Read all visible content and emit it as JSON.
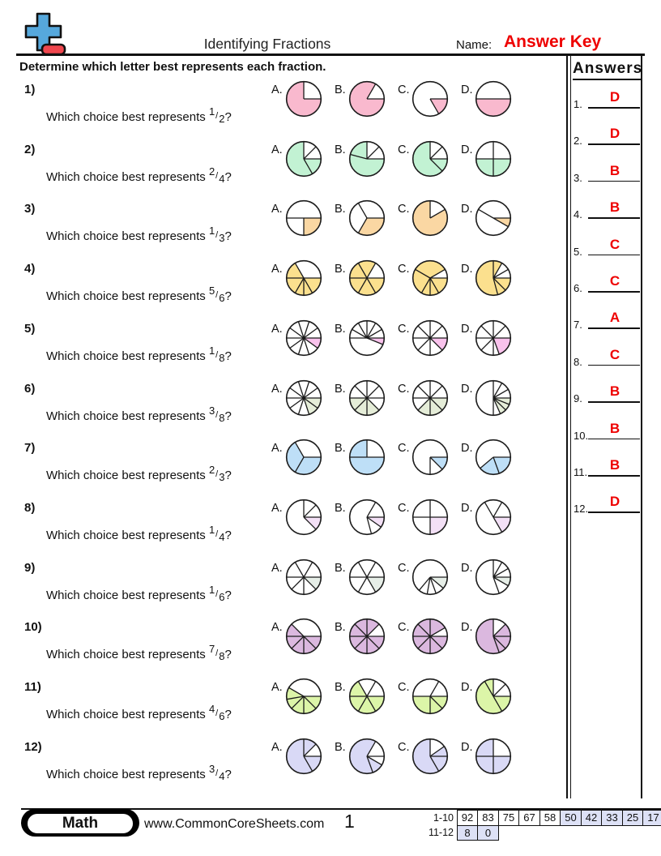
{
  "header": {
    "title": "Identifying Fractions",
    "name_label": "Name:",
    "name_value": "Answer Key"
  },
  "instruction": "Determine which letter best represents each fraction.",
  "answers_panel": {
    "title": "Answers",
    "items": [
      {
        "num": "1.",
        "letter": "D"
      },
      {
        "num": "2.",
        "letter": "D"
      },
      {
        "num": "3.",
        "letter": "B"
      },
      {
        "num": "4.",
        "letter": "B"
      },
      {
        "num": "5.",
        "letter": "C"
      },
      {
        "num": "6.",
        "letter": "C"
      },
      {
        "num": "7.",
        "letter": "A"
      },
      {
        "num": "8.",
        "letter": "C"
      },
      {
        "num": "9.",
        "letter": "B"
      },
      {
        "num": "10.",
        "letter": "B"
      },
      {
        "num": "11.",
        "letter": "B"
      },
      {
        "num": "12.",
        "letter": "D"
      }
    ]
  },
  "questions": [
    {
      "num": "1)",
      "prompt": "Which choice best represents",
      "fraction": {
        "numerator": "1",
        "denominator": "2"
      },
      "suffix": "?",
      "fill_color": "#F9B9CE",
      "choices": [
        {
          "label": "A.",
          "boundaries": [
            0,
            90
          ],
          "filled": [
            [
              90,
              360
            ]
          ]
        },
        {
          "label": "B.",
          "boundaries": [
            30,
            90
          ],
          "filled": [
            [
              90,
              390
            ]
          ]
        },
        {
          "label": "C.",
          "boundaries": [
            90,
            150
          ],
          "filled": [
            [
              90,
              150
            ]
          ]
        },
        {
          "label": "D.",
          "boundaries": [
            90,
            270
          ],
          "filled": [
            [
              90,
              270
            ]
          ]
        }
      ]
    },
    {
      "num": "2)",
      "prompt": "Which choice best represents",
      "fraction": {
        "numerator": "2",
        "denominator": "4"
      },
      "suffix": "?",
      "fill_color": "#C2F2D3",
      "choices": [
        {
          "label": "A.",
          "boundaries": [
            0,
            45,
            90,
            150
          ],
          "filled": [
            [
              90,
              360
            ]
          ]
        },
        {
          "label": "B.",
          "boundaries": [
            0,
            45,
            90,
            285
          ],
          "filled": [
            [
              90,
              360
            ]
          ]
        },
        {
          "label": "C.",
          "boundaries": [
            0,
            45,
            90,
            135
          ],
          "filled": [
            [
              90,
              360
            ]
          ]
        },
        {
          "label": "D.",
          "boundaries": [
            0,
            90,
            180,
            270
          ],
          "filled": [
            [
              90,
              270
            ]
          ]
        }
      ]
    },
    {
      "num": "3)",
      "prompt": "Which choice best represents",
      "fraction": {
        "numerator": "1",
        "denominator": "3"
      },
      "suffix": "?",
      "fill_color": "#FAD7A3",
      "choices": [
        {
          "label": "A.",
          "boundaries": [
            90,
            180,
            270
          ],
          "filled": [
            [
              90,
              180
            ]
          ]
        },
        {
          "label": "B.",
          "boundaries": [
            90,
            210,
            330
          ],
          "filled": [
            [
              90,
              210
            ]
          ]
        },
        {
          "label": "C.",
          "boundaries": [
            0,
            60
          ],
          "filled": [
            [
              60,
              360
            ]
          ]
        },
        {
          "label": "D.",
          "boundaries": [
            300,
            90,
            120
          ],
          "filled": [
            [
              90,
              120
            ]
          ]
        }
      ]
    },
    {
      "num": "4)",
      "prompt": "Which choice best represents",
      "fraction": {
        "numerator": "5",
        "denominator": "6"
      },
      "suffix": "?",
      "fill_color": "#FBE08E",
      "choices": [
        {
          "label": "A.",
          "boundaries": [
            330,
            90,
            150,
            180,
            210,
            270
          ],
          "filled": [
            [
              90,
              330
            ]
          ]
        },
        {
          "label": "B.",
          "boundaries": [
            30,
            90,
            150,
            210,
            270,
            330
          ],
          "filled": [
            [
              90,
              390
            ]
          ]
        },
        {
          "label": "C.",
          "boundaries": [
            60,
            90,
            150,
            180,
            210,
            300
          ],
          "filled": [
            [
              90,
              420
            ]
          ]
        },
        {
          "label": "D.",
          "boundaries": [
            0,
            30,
            60,
            90,
            135,
            165
          ],
          "filled": [
            [
              90,
              360
            ],
            [
              0,
              30
            ]
          ]
        }
      ]
    },
    {
      "num": "5)",
      "prompt": "Which choice best represents",
      "fraction": {
        "numerator": "1",
        "denominator": "8"
      },
      "suffix": "?",
      "fill_color": "#F9C2EC",
      "choices": [
        {
          "label": "A.",
          "boundaries": [
            18,
            54,
            90,
            126,
            162,
            198,
            234,
            270,
            306,
            342
          ],
          "filled": [
            [
              90,
              126
            ]
          ]
        },
        {
          "label": "B.",
          "boundaries": [
            270,
            300,
            330,
            0,
            30,
            60,
            90,
            112
          ],
          "filled": [
            [
              90,
              112
            ]
          ]
        },
        {
          "label": "C.",
          "boundaries": [
            0,
            45,
            90,
            135,
            180,
            225,
            270,
            315
          ],
          "filled": [
            [
              90,
              135
            ]
          ]
        },
        {
          "label": "D.",
          "boundaries": [
            0,
            45,
            90,
            160,
            180,
            225,
            270,
            315
          ],
          "filled": [
            [
              90,
              160
            ]
          ]
        }
      ]
    },
    {
      "num": "6)",
      "prompt": "Which choice best represents",
      "fraction": {
        "numerator": "3",
        "denominator": "8"
      },
      "suffix": "?",
      "fill_color": "#E5EDD8",
      "choices": [
        {
          "label": "A.",
          "boundaries": [
            18,
            54,
            90,
            126,
            162,
            198,
            234,
            270,
            306,
            342
          ],
          "filled": [
            [
              90,
              162
            ]
          ]
        },
        {
          "label": "B.",
          "boundaries": [
            0,
            45,
            90,
            135,
            180,
            225,
            270,
            315
          ],
          "filled": [
            [
              135,
              270
            ]
          ]
        },
        {
          "label": "C.",
          "boundaries": [
            0,
            45,
            90,
            135,
            180,
            225,
            270,
            315
          ],
          "filled": [
            [
              90,
              225
            ]
          ]
        },
        {
          "label": "D.",
          "boundaries": [
            0,
            30,
            60,
            90,
            112,
            134,
            156,
            180
          ],
          "filled": [
            [
              90,
              156
            ]
          ]
        }
      ]
    },
    {
      "num": "7)",
      "prompt": "Which choice best represents",
      "fraction": {
        "numerator": "2",
        "denominator": "3"
      },
      "suffix": "?",
      "fill_color": "#BEDFF7",
      "choices": [
        {
          "label": "A.",
          "boundaries": [
            330,
            90,
            210
          ],
          "filled": [
            [
              90,
              330
            ]
          ]
        },
        {
          "label": "B.",
          "boundaries": [
            0,
            90,
            270
          ],
          "filled": [
            [
              90,
              360
            ]
          ]
        },
        {
          "label": "C.",
          "boundaries": [
            90,
            135,
            180
          ],
          "filled": [
            [
              90,
              135
            ]
          ]
        },
        {
          "label": "D.",
          "boundaries": [
            90,
            160,
            230
          ],
          "filled": [
            [
              90,
              230
            ]
          ]
        }
      ]
    },
    {
      "num": "8)",
      "prompt": "Which choice best represents",
      "fraction": {
        "numerator": "1",
        "denominator": "4"
      },
      "suffix": "?",
      "fill_color": "#F3E0F6",
      "choices": [
        {
          "label": "A.",
          "boundaries": [
            0,
            45,
            90,
            135
          ],
          "filled": [
            [
              90,
              135
            ]
          ]
        },
        {
          "label": "B.",
          "boundaries": [
            30,
            90,
            125,
            165
          ],
          "filled": [
            [
              90,
              125
            ]
          ]
        },
        {
          "label": "C.",
          "boundaries": [
            0,
            90,
            180,
            270
          ],
          "filled": [
            [
              90,
              180
            ]
          ]
        },
        {
          "label": "D.",
          "boundaries": [
            330,
            30,
            90,
            150
          ],
          "filled": [
            [
              90,
              150
            ]
          ]
        }
      ]
    },
    {
      "num": "9)",
      "prompt": "Which choice best represents",
      "fraction": {
        "numerator": "1",
        "denominator": "6"
      },
      "suffix": "?",
      "fill_color": "#E6EEE7",
      "choices": [
        {
          "label": "A.",
          "boundaries": [
            330,
            30,
            90,
            135,
            180,
            225,
            270
          ],
          "filled": [
            [
              90,
              135
            ]
          ]
        },
        {
          "label": "B.",
          "boundaries": [
            30,
            90,
            150,
            210,
            270,
            330
          ],
          "filled": [
            [
              90,
              150
            ]
          ]
        },
        {
          "label": "C.",
          "boundaries": [
            90,
            130,
            160,
            190,
            220
          ],
          "filled": [
            [
              90,
              130
            ]
          ]
        },
        {
          "label": "D.",
          "boundaries": [
            0,
            30,
            60,
            90,
            120,
            160
          ],
          "filled": [
            [
              90,
              120
            ]
          ]
        }
      ]
    },
    {
      "num": "10)",
      "prompt": "Which choice best represents",
      "fraction": {
        "numerator": "7",
        "denominator": "8"
      },
      "suffix": "?",
      "fill_color": "#DBB8DF",
      "choices": [
        {
          "label": "A.",
          "boundaries": [
            315,
            90,
            135,
            180,
            225,
            270
          ],
          "filled": [
            [
              90,
              315
            ]
          ]
        },
        {
          "label": "B.",
          "boundaries": [
            0,
            45,
            90,
            135,
            180,
            225,
            270,
            315
          ],
          "filled": [
            [
              90,
              405
            ]
          ]
        },
        {
          "label": "C.",
          "boundaries": [
            0,
            60,
            90,
            135,
            180,
            225,
            270,
            315
          ],
          "filled": [
            [
              90,
              420
            ]
          ]
        },
        {
          "label": "D.",
          "boundaries": [
            0,
            45,
            90,
            135,
            160
          ],
          "filled": [
            [
              45,
              360
            ]
          ]
        }
      ]
    },
    {
      "num": "11)",
      "prompt": "Which choice best represents",
      "fraction": {
        "numerator": "4",
        "denominator": "6"
      },
      "suffix": "?",
      "fill_color": "#DCF5A8",
      "choices": [
        {
          "label": "A.",
          "boundaries": [
            300,
            90,
            135,
            180,
            225,
            260
          ],
          "filled": [
            [
              90,
              300
            ]
          ]
        },
        {
          "label": "B.",
          "boundaries": [
            30,
            90,
            150,
            210,
            270,
            330
          ],
          "filled": [
            [
              90,
              330
            ]
          ]
        },
        {
          "label": "C.",
          "boundaries": [
            30,
            90,
            135,
            180,
            270
          ],
          "filled": [
            [
              90,
              270
            ]
          ]
        },
        {
          "label": "D.",
          "boundaries": [
            330,
            0,
            45,
            90,
            150
          ],
          "filled": [
            [
              90,
              330
            ],
            [
              330,
              360
            ]
          ]
        }
      ]
    },
    {
      "num": "12)",
      "prompt": "Which choice best represents",
      "fraction": {
        "numerator": "3",
        "denominator": "4"
      },
      "suffix": "?",
      "fill_color": "#D9D9F6",
      "choices": [
        {
          "label": "A.",
          "boundaries": [
            0,
            45,
            90,
            150
          ],
          "filled": [
            [
              90,
              360
            ],
            [
              0,
              45
            ]
          ]
        },
        {
          "label": "B.",
          "boundaries": [
            30,
            90,
            120,
            160
          ],
          "filled": [
            [
              120,
              390
            ]
          ]
        },
        {
          "label": "C.",
          "boundaries": [
            0,
            55,
            90,
            150
          ],
          "filled": [
            [
              55,
              360
            ]
          ]
        },
        {
          "label": "D.",
          "boundaries": [
            0,
            90,
            180,
            270
          ],
          "filled": [
            [
              90,
              360
            ]
          ]
        }
      ]
    }
  ],
  "footer": {
    "subject": "Math",
    "website": "www.CommonCoreSheets.com",
    "page": "1",
    "score_table": {
      "shade_color": "#DDE1F6",
      "rows": [
        {
          "label": "1-10",
          "cells": [
            {
              "value": "92",
              "shaded": false
            },
            {
              "value": "83",
              "shaded": false
            },
            {
              "value": "75",
              "shaded": false
            },
            {
              "value": "67",
              "shaded": false
            },
            {
              "value": "58",
              "shaded": false
            },
            {
              "value": "50",
              "shaded": true
            },
            {
              "value": "42",
              "shaded": true
            },
            {
              "value": "33",
              "shaded": true
            },
            {
              "value": "25",
              "shaded": true
            },
            {
              "value": "17",
              "shaded": true
            }
          ]
        },
        {
          "label": "11-12",
          "cells": [
            {
              "value": "8",
              "shaded": true
            },
            {
              "value": "0",
              "shaded": true
            }
          ]
        }
      ]
    }
  },
  "colors": {
    "accent_red": "#EE0000",
    "logo_blue": "#56A8DC",
    "logo_red": "#F0474E",
    "pie_stroke": "#1B1B1B"
  }
}
